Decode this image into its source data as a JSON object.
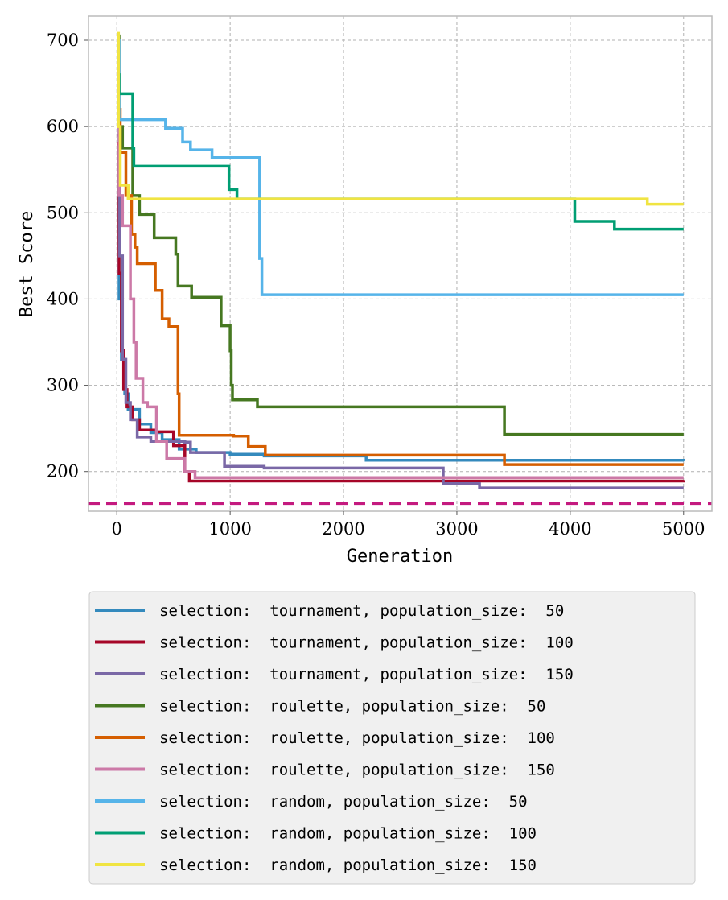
{
  "chart_data": {
    "type": "line",
    "title": "",
    "xlabel": "Generation",
    "ylabel": "Best Score",
    "xlim": [
      -250,
      5250
    ],
    "ylim": [
      154,
      728
    ],
    "xticks": [
      0,
      1000,
      2000,
      3000,
      4000,
      5000
    ],
    "yticks": [
      200,
      300,
      400,
      500,
      600,
      700
    ],
    "grid": true,
    "legend_position": "below",
    "reference_line": {
      "y": 163,
      "color": "#c41a7f",
      "style": "dashed"
    },
    "series": [
      {
        "name": "selection:  tournament, population_size:  50",
        "color": "#348abd",
        "points": [
          [
            0,
            600
          ],
          [
            20,
            400
          ],
          [
            40,
            330
          ],
          [
            70,
            290
          ],
          [
            100,
            272
          ],
          [
            200,
            255
          ],
          [
            300,
            245
          ],
          [
            400,
            237
          ],
          [
            550,
            226
          ],
          [
            700,
            222
          ],
          [
            1000,
            220
          ],
          [
            1300,
            218
          ],
          [
            2200,
            213
          ],
          [
            5000,
            212
          ]
        ]
      },
      {
        "name": "selection:  tournament, population_size:  100",
        "color": "#a60628",
        "points": [
          [
            0,
            580
          ],
          [
            20,
            430
          ],
          [
            40,
            340
          ],
          [
            60,
            295
          ],
          [
            90,
            275
          ],
          [
            140,
            260
          ],
          [
            200,
            248
          ],
          [
            350,
            246
          ],
          [
            500,
            230
          ],
          [
            600,
            200
          ],
          [
            640,
            189
          ],
          [
            2000,
            189
          ],
          [
            5000,
            190
          ]
        ]
      },
      {
        "name": "selection:  tournament, population_size:  150",
        "color": "#7a68a6",
        "points": [
          [
            0,
            590
          ],
          [
            25,
            450
          ],
          [
            50,
            330
          ],
          [
            80,
            280
          ],
          [
            120,
            260
          ],
          [
            180,
            240
          ],
          [
            300,
            235
          ],
          [
            600,
            234
          ],
          [
            650,
            222
          ],
          [
            900,
            222
          ],
          [
            950,
            206
          ],
          [
            1300,
            204
          ],
          [
            2850,
            204
          ],
          [
            2880,
            186
          ],
          [
            3200,
            181
          ],
          [
            5000,
            181
          ]
        ]
      },
      {
        "name": "selection:  roulette, population_size:  50",
        "color": "#467821",
        "points": [
          [
            0,
            705
          ],
          [
            20,
            600
          ],
          [
            50,
            575
          ],
          [
            120,
            575
          ],
          [
            140,
            520
          ],
          [
            200,
            498
          ],
          [
            320,
            498
          ],
          [
            330,
            471
          ],
          [
            500,
            471
          ],
          [
            520,
            452
          ],
          [
            540,
            415
          ],
          [
            650,
            415
          ],
          [
            660,
            402
          ],
          [
            900,
            402
          ],
          [
            920,
            369
          ],
          [
            990,
            369
          ],
          [
            1000,
            340
          ],
          [
            1010,
            300
          ],
          [
            1020,
            283
          ],
          [
            1230,
            283
          ],
          [
            1240,
            275
          ],
          [
            3400,
            275
          ],
          [
            3420,
            243
          ],
          [
            5000,
            243
          ]
        ]
      },
      {
        "name": "selection:  roulette, population_size:  100",
        "color": "#d55e00",
        "points": [
          [
            0,
            620
          ],
          [
            30,
            570
          ],
          [
            80,
            520
          ],
          [
            130,
            475
          ],
          [
            160,
            460
          ],
          [
            180,
            441
          ],
          [
            330,
            441
          ],
          [
            340,
            410
          ],
          [
            400,
            377
          ],
          [
            450,
            377
          ],
          [
            460,
            368
          ],
          [
            520,
            368
          ],
          [
            540,
            290
          ],
          [
            550,
            242
          ],
          [
            1000,
            242
          ],
          [
            1030,
            241
          ],
          [
            1150,
            241
          ],
          [
            1160,
            229
          ],
          [
            1300,
            229
          ],
          [
            1310,
            219
          ],
          [
            3400,
            219
          ],
          [
            3420,
            208
          ],
          [
            5000,
            208
          ]
        ]
      },
      {
        "name": "selection:  roulette, population_size:  150",
        "color": "#cc79a7",
        "points": [
          [
            0,
            600
          ],
          [
            20,
            520
          ],
          [
            50,
            485
          ],
          [
            90,
            485
          ],
          [
            120,
            400
          ],
          [
            150,
            350
          ],
          [
            170,
            308
          ],
          [
            220,
            308
          ],
          [
            230,
            280
          ],
          [
            270,
            275
          ],
          [
            350,
            235
          ],
          [
            420,
            235
          ],
          [
            440,
            215
          ],
          [
            580,
            215
          ],
          [
            600,
            200
          ],
          [
            690,
            193
          ],
          [
            5000,
            193
          ]
        ]
      },
      {
        "name": "selection:  random, population_size:  50",
        "color": "#56b4e9",
        "points": [
          [
            0,
            700
          ],
          [
            20,
            608
          ],
          [
            420,
            608
          ],
          [
            430,
            598
          ],
          [
            570,
            598
          ],
          [
            580,
            582
          ],
          [
            640,
            582
          ],
          [
            650,
            573
          ],
          [
            830,
            573
          ],
          [
            840,
            564
          ],
          [
            1250,
            564
          ],
          [
            1260,
            447
          ],
          [
            1270,
            447
          ],
          [
            1280,
            405
          ],
          [
            5000,
            405
          ]
        ]
      },
      {
        "name": "selection:  random, population_size:  100",
        "color": "#009e73",
        "points": [
          [
            0,
            660
          ],
          [
            20,
            638
          ],
          [
            130,
            638
          ],
          [
            140,
            575
          ],
          [
            150,
            554
          ],
          [
            980,
            554
          ],
          [
            990,
            527
          ],
          [
            1050,
            527
          ],
          [
            1060,
            516
          ],
          [
            4030,
            516
          ],
          [
            4040,
            490
          ],
          [
            4380,
            490
          ],
          [
            4390,
            481
          ],
          [
            5000,
            481
          ]
        ]
      },
      {
        "name": "selection:  random, population_size:  150",
        "color": "#f0e442",
        "points": [
          [
            0,
            708
          ],
          [
            15,
            600
          ],
          [
            30,
            532
          ],
          [
            80,
            532
          ],
          [
            100,
            516
          ],
          [
            4660,
            516
          ],
          [
            4680,
            510
          ],
          [
            5000,
            510
          ]
        ]
      }
    ]
  }
}
